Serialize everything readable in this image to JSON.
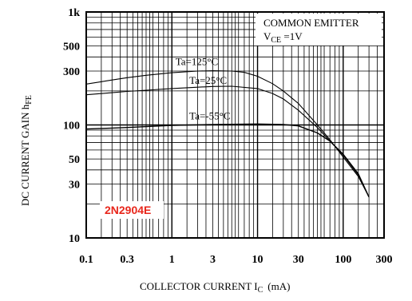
{
  "chart_data": {
    "type": "line",
    "x_scale": "log",
    "y_scale": "log",
    "xlim": [
      0.1,
      300
    ],
    "ylim": [
      10,
      1000
    ],
    "grid": true,
    "xlabel": "COLLECTOR CURRENT I",
    "xlabel_sub": "C",
    "xlabel_unit": "(mA)",
    "ylabel": "DC CURRENT GAIN h",
    "ylabel_sub": "FE",
    "x_ticks": [
      {
        "value": 0.1,
        "label": "0.1"
      },
      {
        "value": 0.3,
        "label": "0.3"
      },
      {
        "value": 1,
        "label": "1"
      },
      {
        "value": 3,
        "label": "3"
      },
      {
        "value": 10,
        "label": "10"
      },
      {
        "value": 30,
        "label": "30"
      },
      {
        "value": 100,
        "label": "100"
      },
      {
        "value": 300,
        "label": "300"
      }
    ],
    "y_ticks": [
      {
        "value": 10,
        "label": "10"
      },
      {
        "value": 30,
        "label": "30"
      },
      {
        "value": 50,
        "label": "50"
      },
      {
        "value": 100,
        "label": "100"
      },
      {
        "value": 300,
        "label": "300"
      },
      {
        "value": 500,
        "label": "500"
      },
      {
        "value": 1000,
        "label": "1k"
      }
    ],
    "conditions": {
      "line1": "COMMON EMITTER",
      "line2": "V",
      "line2_sub": "CE",
      "line2_rest": " =1V"
    },
    "part_label": "2N2904E",
    "series": [
      {
        "name": "Ta=125°C",
        "x": [
          0.1,
          0.2,
          0.3,
          0.5,
          1,
          2,
          3,
          5,
          7,
          10,
          15,
          20,
          30,
          50,
          70,
          100,
          150,
          200
        ],
        "y": [
          230,
          250,
          262,
          275,
          290,
          300,
          302,
          300,
          292,
          270,
          232,
          200,
          155,
          100,
          74,
          52,
          35,
          23
        ]
      },
      {
        "name": "Ta=25°C",
        "x": [
          0.1,
          0.2,
          0.3,
          0.5,
          1,
          2,
          3,
          5,
          10,
          15,
          20,
          30,
          50,
          70,
          100,
          150,
          200
        ],
        "y": [
          185,
          193,
          198,
          203,
          210,
          216,
          219,
          220,
          210,
          190,
          170,
          135,
          95,
          72,
          54,
          36,
          23
        ]
      },
      {
        "name": "Ta=-55°C",
        "x": [
          0.1,
          0.3,
          1,
          3,
          10,
          20,
          30,
          50,
          70,
          100,
          150,
          200
        ],
        "y": [
          92,
          95,
          99,
          101,
          102,
          101,
          98,
          85,
          72,
          55,
          37,
          23
        ]
      }
    ]
  }
}
